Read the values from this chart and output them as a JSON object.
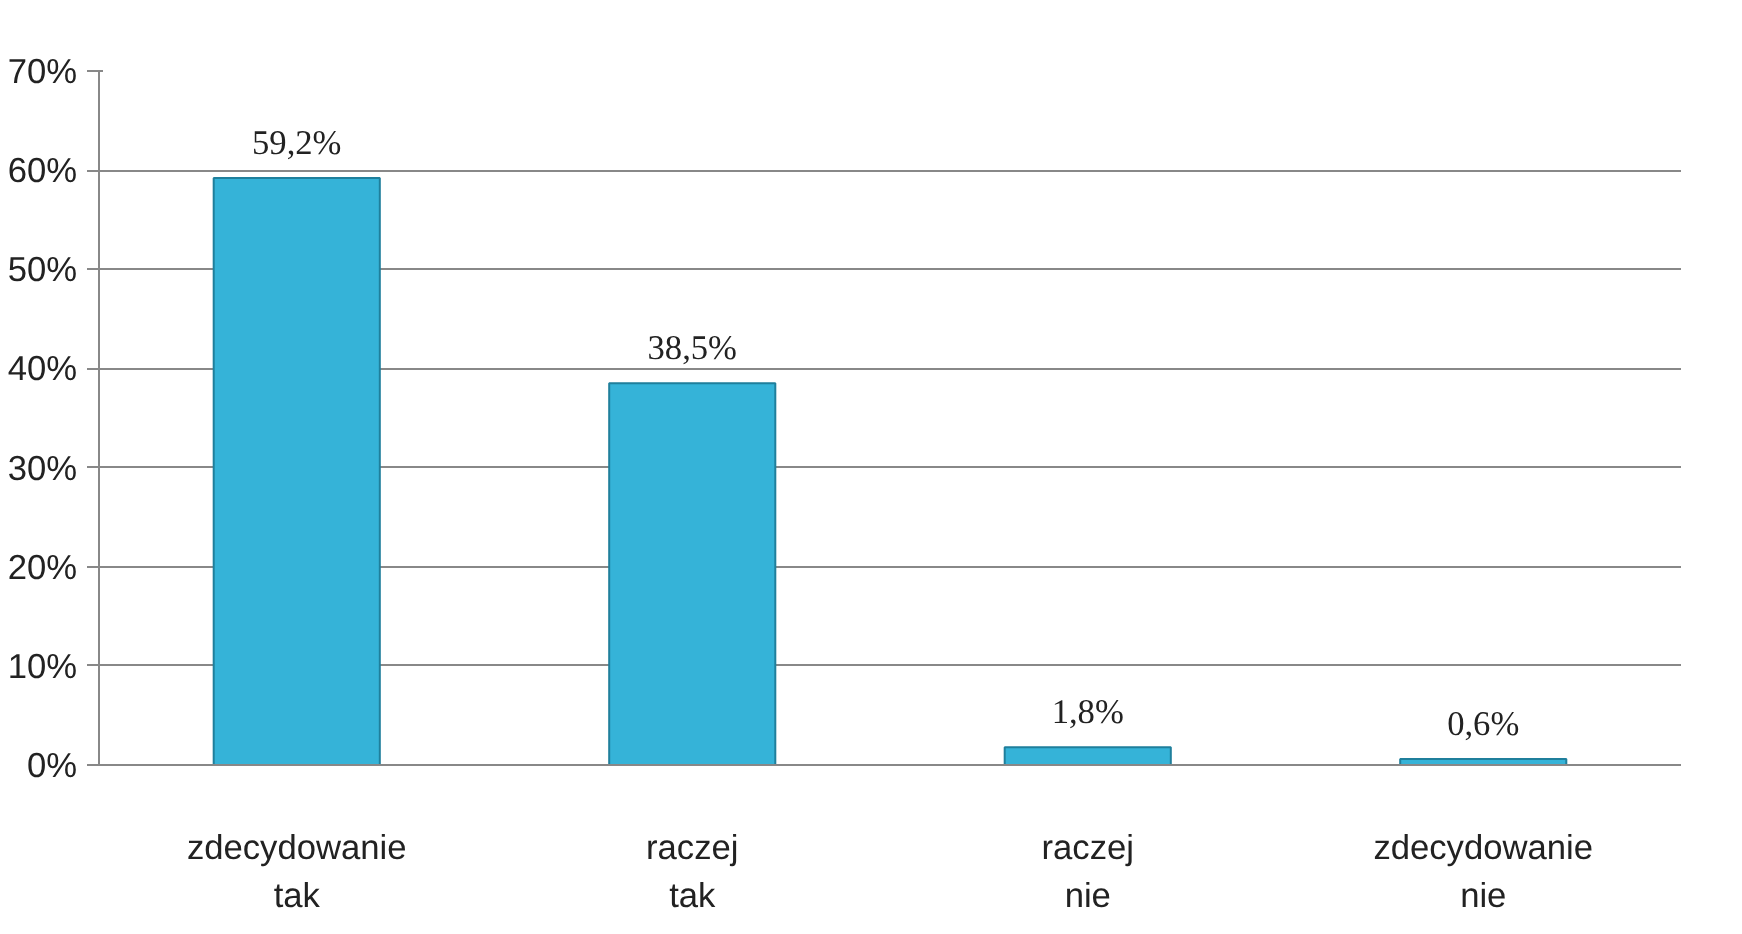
{
  "chart_data": {
    "type": "bar",
    "categories": [
      "zdecydowanie tak",
      "raczej tak",
      "raczej nie",
      "zdecydowanie nie"
    ],
    "values": [
      59.2,
      38.5,
      1.8,
      0.6
    ],
    "value_labels": [
      "59,2%",
      "38,5%",
      "1,8%",
      "0,6%"
    ],
    "color": "#35b3d8",
    "ylim": [
      0,
      70
    ],
    "yticks": [
      {
        "value": 0,
        "label": "0%"
      },
      {
        "value": 10,
        "label": "10%"
      },
      {
        "value": 20,
        "label": "20%"
      },
      {
        "value": 30,
        "label": "30%"
      },
      {
        "value": 40,
        "label": "40%"
      },
      {
        "value": 50,
        "label": "50%"
      },
      {
        "value": 60,
        "label": "60%"
      },
      {
        "value": 70,
        "label": "70%"
      }
    ],
    "grid": "y"
  }
}
